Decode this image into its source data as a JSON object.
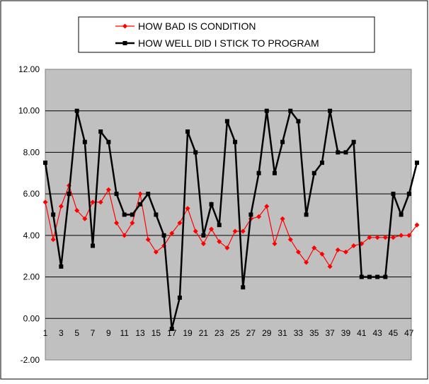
{
  "chart_data": {
    "type": "line",
    "title": "",
    "xlabel": "",
    "ylabel": "",
    "ylim": [
      -2,
      12
    ],
    "yticks": [
      "12.00",
      "10.00",
      "8.00",
      "6.00",
      "4.00",
      "2.00",
      "0.00",
      "-2.00"
    ],
    "x": [
      1,
      2,
      3,
      4,
      5,
      6,
      7,
      8,
      9,
      10,
      11,
      12,
      13,
      14,
      15,
      16,
      17,
      18,
      19,
      20,
      21,
      22,
      23,
      24,
      25,
      26,
      27,
      28,
      29,
      30,
      31,
      32,
      33,
      34,
      35,
      36,
      37,
      38,
      39,
      40,
      41,
      42,
      43,
      44,
      45,
      46,
      47,
      48
    ],
    "xtick_labels": [
      1,
      3,
      5,
      7,
      9,
      11,
      13,
      15,
      17,
      19,
      21,
      23,
      25,
      27,
      29,
      31,
      33,
      35,
      37,
      39,
      41,
      43,
      45,
      47
    ],
    "grid": "horizontal",
    "legend_position": "top",
    "series": [
      {
        "name": "HOW BAD IS CONDITION",
        "color": "#ff0000",
        "marker": "diamond",
        "values": [
          5.6,
          3.8,
          5.4,
          6.4,
          5.2,
          4.8,
          5.6,
          5.6,
          6.2,
          4.6,
          4.0,
          4.6,
          6.0,
          3.8,
          3.2,
          3.5,
          4.1,
          4.6,
          5.3,
          4.2,
          3.6,
          4.3,
          3.7,
          3.4,
          4.2,
          4.2,
          4.8,
          4.9,
          5.4,
          3.6,
          4.8,
          3.8,
          3.2,
          2.7,
          3.4,
          3.1,
          2.5,
          3.3,
          3.2,
          3.5,
          3.6,
          3.9,
          3.9,
          3.9,
          3.9,
          4.0,
          4.0,
          4.5
        ]
      },
      {
        "name": "HOW WELL DID I STICK TO PROGRAM",
        "color": "#000000",
        "marker": "square",
        "values": [
          7.5,
          5.0,
          2.5,
          6.0,
          10.0,
          8.5,
          3.5,
          9.0,
          8.5,
          6.0,
          5.0,
          5.0,
          5.5,
          6.0,
          5.0,
          4.0,
          -0.5,
          1.0,
          9.0,
          8.0,
          4.0,
          5.5,
          4.5,
          9.5,
          8.5,
          1.5,
          5.0,
          7.0,
          10.0,
          7.0,
          8.5,
          10.0,
          9.5,
          5.0,
          7.0,
          7.5,
          10.0,
          8.0,
          8.0,
          8.5,
          2.0,
          2.0,
          2.0,
          2.0,
          6.0,
          5.0,
          6.0,
          7.5
        ]
      }
    ]
  }
}
